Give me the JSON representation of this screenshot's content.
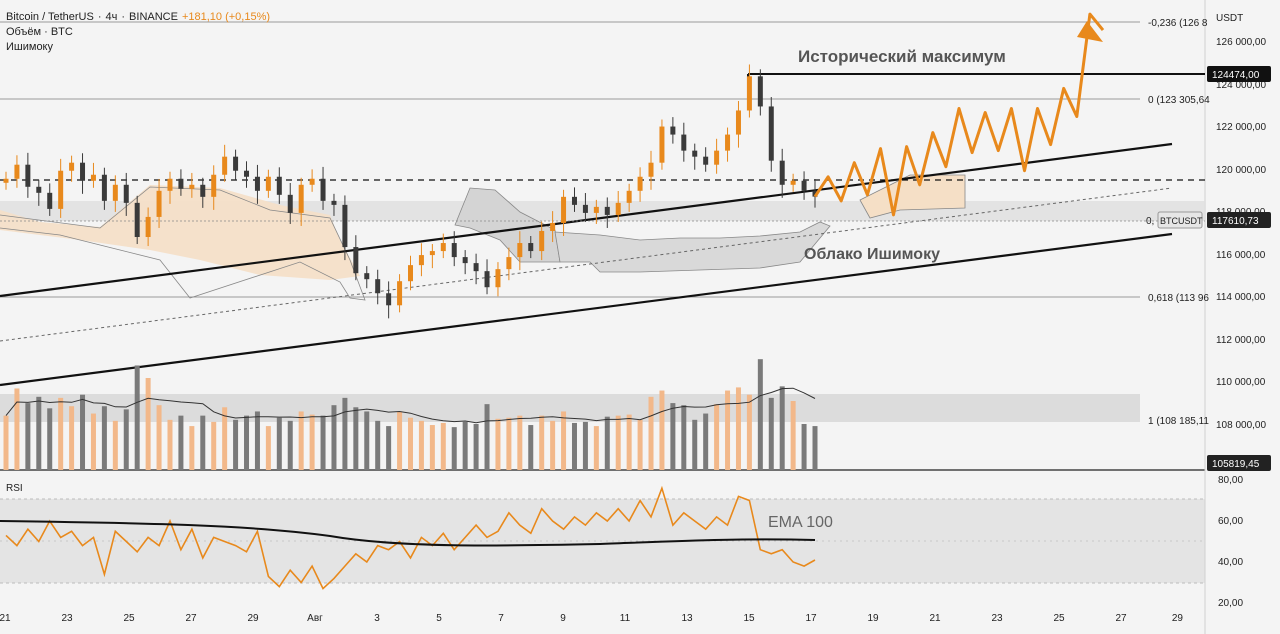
{
  "header": {
    "symbol": "Bitcoin / TetherUS",
    "interval": "4ч",
    "exchange": "BINANCE",
    "change": "+181,10 (+0,15%)",
    "volume_label": "Объём · BTC",
    "ichimoku_label": "Ишимоку"
  },
  "price_axis": {
    "currency": "USDT",
    "ticks": [
      "126 000,00",
      "124 000,00",
      "122 000,00",
      "120 000,00",
      "118 000,00",
      "116 000,00",
      "114 000,00",
      "112 000,00",
      "110 000,00",
      "108 000,00"
    ],
    "ath_badge": "124474,00",
    "current_badge": "117610,73",
    "bottom_badge": "105819,45"
  },
  "rsi_axis": {
    "label": "RSI",
    "ticks": [
      "80,00",
      "60,00",
      "40,00",
      "20,00"
    ]
  },
  "x_axis": {
    "labels": [
      "21",
      "23",
      "25",
      "27",
      "29",
      "Авг",
      "3",
      "5",
      "7",
      "9",
      "11",
      "13",
      "15",
      "17",
      "19",
      "21",
      "23",
      "25",
      "27",
      "29"
    ]
  },
  "fib_levels": [
    {
      "label": "-0,236 (126 8"
    },
    {
      "label": "0 (123 305,64"
    },
    {
      "label": "0,618 (113 96"
    },
    {
      "label": "1 (108 185,11"
    }
  ],
  "annotations": {
    "ath": "Исторический максимум",
    "cloud": "Облако Ишимоку",
    "ema": "EMA 100",
    "ticker": "BTCUSDT",
    "zero_marker": "0,"
  },
  "colors": {
    "bull": "#e8891c",
    "bear": "#3a3a3a",
    "rsi": "#e8891c",
    "volume_bull": "#f2b88a",
    "volume_bear": "#7a7a7a"
  },
  "chart_data": [
    {
      "type": "candlestick",
      "price_range": [
        104000,
        127400
      ],
      "forecast_path": [
        117610,
        118600,
        117400,
        119300,
        117700,
        120000,
        116700,
        120100,
        118200,
        120800,
        119100,
        122000,
        119800,
        121800,
        119900,
        122000,
        118900,
        122000,
        120200,
        123000,
        121600,
        126700,
        125900
      ],
      "closes": [
        118500,
        119200,
        118100,
        117800,
        117000,
        118900,
        119300,
        118400,
        118700,
        117400,
        118200,
        117300,
        115600,
        116600,
        117900,
        118500,
        118000,
        118200,
        117600,
        118700,
        119600,
        118900,
        118600,
        117900,
        118600,
        117700,
        116800,
        118200,
        118500,
        117400,
        117200,
        115100,
        113800,
        113500,
        112800,
        112200,
        113400,
        114200,
        114700,
        114900,
        115300,
        114600,
        114300,
        113900,
        113100,
        114000,
        114600,
        115300,
        114900,
        115900,
        116300,
        117600,
        117200,
        116800,
        117100,
        116700,
        117300,
        117900,
        118600,
        119300,
        121100,
        120700,
        119900,
        119600,
        119200,
        119900,
        120700,
        121900,
        123600,
        122100,
        119400,
        118200,
        118400,
        117900,
        117610
      ]
    },
    {
      "type": "bar",
      "name": "volume",
      "values": [
        520,
        780,
        640,
        700,
        590,
        690,
        610,
        720,
        540,
        610,
        470,
        580,
        1000,
        880,
        620,
        480,
        520,
        420,
        520,
        460,
        600,
        480,
        520,
        560,
        420,
        500,
        470,
        560,
        530,
        520,
        620,
        690,
        600,
        560,
        470,
        420,
        560,
        500,
        470,
        430,
        450,
        410,
        460,
        440,
        630,
        490,
        500,
        520,
        430,
        520,
        470,
        560,
        450,
        460,
        420,
        510,
        520,
        530,
        480,
        700,
        760,
        640,
        620,
        480,
        540,
        630,
        760,
        790,
        720,
        1060,
        690,
        800,
        660,
        440,
        420
      ]
    },
    {
      "type": "line",
      "name": "RSI",
      "range": [
        20,
        80
      ],
      "values": [
        53,
        48,
        56,
        50,
        60,
        52,
        55,
        48,
        52,
        34,
        55,
        50,
        45,
        52,
        48,
        60,
        46,
        56,
        42,
        52,
        50,
        48,
        45,
        55,
        33,
        28,
        36,
        30,
        38,
        27,
        32,
        38,
        44,
        40,
        48,
        46,
        50,
        42,
        52,
        48,
        54,
        46,
        52,
        58,
        52,
        55,
        64,
        58,
        54,
        66,
        60,
        56,
        62,
        58,
        64,
        60,
        66,
        60,
        70,
        62,
        76,
        58,
        64,
        60,
        56,
        62,
        58,
        72,
        70,
        46,
        44,
        46,
        40,
        38,
        41
      ]
    }
  ]
}
